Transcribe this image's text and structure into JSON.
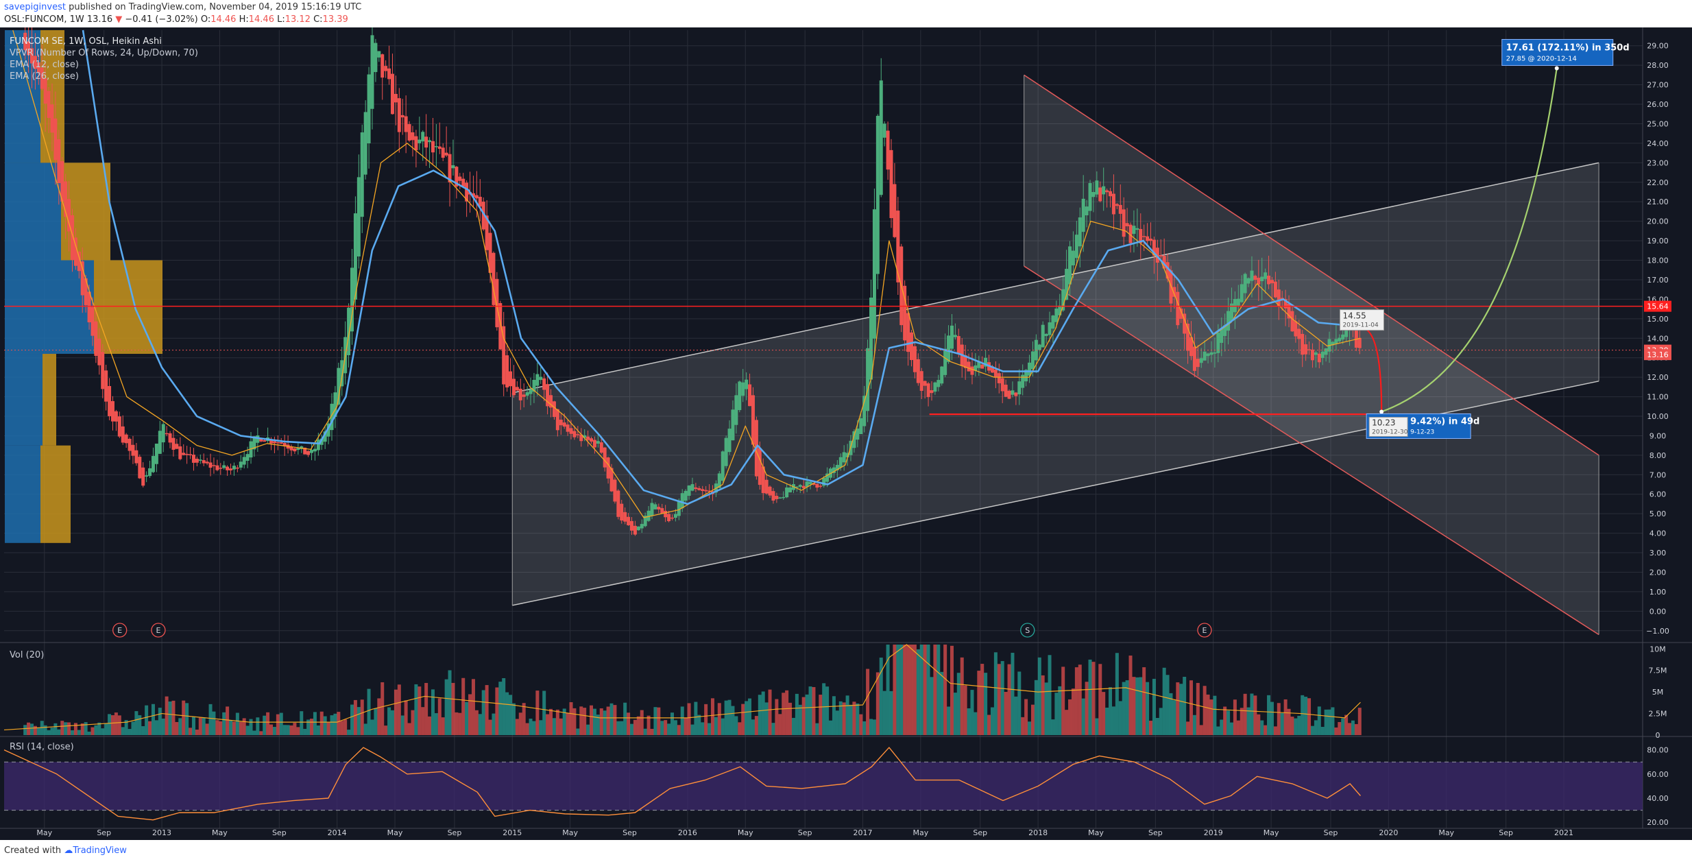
{
  "header": {
    "publisher": "savepiginvest",
    "published_text": "published on TradingView.com, November 04, 2019 15:16:19 UTC",
    "symbol": "OSL:FUNCOM, 1W",
    "last": "13.16",
    "change_arrow": "▼",
    "change": "−0.41 (−3.02%)",
    "ohlc": [
      {
        "label": "O:",
        "value": "14.46"
      },
      {
        "label": "H:",
        "value": "14.46"
      },
      {
        "label": "L:",
        "value": "13.12"
      },
      {
        "label": "C:",
        "value": "13.39"
      }
    ]
  },
  "legend": {
    "title": "FUNCOM SE, 1W, OSL, Heikin Ashi",
    "vpvr": "VPVR (Number Of Rows, 24, Up/Down, 70)",
    "ema12": "EMA (12, close)",
    "ema26": "EMA (26, close)"
  },
  "panes": {
    "volume_label": "Vol (20)",
    "rsi_label": "RSI (14, close)"
  },
  "footer": {
    "created_with": "Created with",
    "brand": "TradingView"
  },
  "colors": {
    "background": "#131722",
    "grid": "#2a2e39",
    "up": "#26a69a",
    "up_candle": "#4caf7d",
    "down": "#ef5350",
    "ema12": "#f5a623",
    "ema26": "#5aaaf0",
    "rsi_line": "#ff8f3a",
    "rsi_band": "#3d2a6e",
    "price_line": "#ff2020",
    "projection_up": "#a5d16f",
    "projection_down": "#ff1a1a",
    "channel_fill": "#ffffff",
    "vpvr_up": "#1e6fae",
    "vpvr_down": "#c9951d",
    "label_blue": "#1565c0"
  },
  "chart_data": {
    "type": "candlestick",
    "y_axis_ticks": [
      "29.00",
      "28.00",
      "27.00",
      "26.00",
      "25.00",
      "24.00",
      "23.00",
      "22.00",
      "21.00",
      "20.00",
      "19.00",
      "18.00",
      "17.00",
      "16.00",
      "15.00",
      "14.00",
      "13.00",
      "12.00",
      "11.00",
      "10.00",
      "9.00",
      "8.00",
      "7.00",
      "6.00",
      "5.00",
      "4.00",
      "3.00",
      "2.00",
      "1.00",
      "0.00",
      "−1.00"
    ],
    "ylim": [
      -1.5,
      29.8
    ],
    "price_badges": [
      {
        "value": 15.64,
        "label": "15.64",
        "color": "#ff2020"
      },
      {
        "value": 13.39,
        "label": "13.39",
        "color": "#ef5350"
      },
      {
        "value": 13.16,
        "label": "13.16",
        "color": "#ef5350"
      }
    ],
    "x_axis_ticks": [
      {
        "label": "May",
        "t": 2012.33
      },
      {
        "label": "Sep",
        "t": 2012.67
      },
      {
        "label": "2013",
        "t": 2013.0
      },
      {
        "label": "May",
        "t": 2013.33
      },
      {
        "label": "Sep",
        "t": 2013.67
      },
      {
        "label": "2014",
        "t": 2014.0
      },
      {
        "label": "May",
        "t": 2014.33
      },
      {
        "label": "Sep",
        "t": 2014.67
      },
      {
        "label": "2015",
        "t": 2015.0
      },
      {
        "label": "May",
        "t": 2015.33
      },
      {
        "label": "Sep",
        "t": 2015.67
      },
      {
        "label": "2016",
        "t": 2016.0
      },
      {
        "label": "May",
        "t": 2016.33
      },
      {
        "label": "Sep",
        "t": 2016.67
      },
      {
        "label": "2017",
        "t": 2017.0
      },
      {
        "label": "May",
        "t": 2017.33
      },
      {
        "label": "Sep",
        "t": 2017.67
      },
      {
        "label": "2018",
        "t": 2018.0
      },
      {
        "label": "May",
        "t": 2018.33
      },
      {
        "label": "Sep",
        "t": 2018.67
      },
      {
        "label": "2019",
        "t": 2019.0
      },
      {
        "label": "May",
        "t": 2019.33
      },
      {
        "label": "Sep",
        "t": 2019.67
      },
      {
        "label": "2020",
        "t": 2020.0
      },
      {
        "label": "May",
        "t": 2020.33
      },
      {
        "label": "Sep",
        "t": 2020.67
      },
      {
        "label": "2021",
        "t": 2021.0
      }
    ],
    "xlim": [
      2012.1,
      2021.45
    ],
    "price_path": [
      [
        2012.15,
        32
      ],
      [
        2012.33,
        26
      ],
      [
        2012.5,
        18
      ],
      [
        2012.6,
        14.5
      ],
      [
        2012.68,
        10.5
      ],
      [
        2012.8,
        8.5
      ],
      [
        2012.9,
        6.5
      ],
      [
        2013.0,
        9.5
      ],
      [
        2013.1,
        8.0
      ],
      [
        2013.25,
        7.5
      ],
      [
        2013.4,
        7.2
      ],
      [
        2013.55,
        9.0
      ],
      [
        2013.7,
        8.6
      ],
      [
        2013.85,
        8.0
      ],
      [
        2013.95,
        9.5
      ],
      [
        2014.05,
        14
      ],
      [
        2014.12,
        22
      ],
      [
        2014.2,
        29
      ],
      [
        2014.28,
        27
      ],
      [
        2014.4,
        24
      ],
      [
        2014.5,
        24
      ],
      [
        2014.6,
        23
      ],
      [
        2014.7,
        22
      ],
      [
        2014.8,
        21
      ],
      [
        2014.88,
        17
      ],
      [
        2014.95,
        12
      ],
      [
        2015.05,
        11
      ],
      [
        2015.15,
        12
      ],
      [
        2015.25,
        9.5
      ],
      [
        2015.35,
        9.0
      ],
      [
        2015.5,
        8.5
      ],
      [
        2015.6,
        5.0
      ],
      [
        2015.7,
        3.9
      ],
      [
        2015.8,
        5.5
      ],
      [
        2015.9,
        4.5
      ],
      [
        2016.0,
        6.5
      ],
      [
        2016.15,
        6.0
      ],
      [
        2016.25,
        10.0
      ],
      [
        2016.33,
        12.5
      ],
      [
        2016.4,
        6.5
      ],
      [
        2016.5,
        5.5
      ],
      [
        2016.6,
        6.5
      ],
      [
        2016.75,
        6.5
      ],
      [
        2016.9,
        8.0
      ],
      [
        2017.0,
        10.0
      ],
      [
        2017.05,
        17.0
      ],
      [
        2017.1,
        28.0
      ],
      [
        2017.15,
        22.0
      ],
      [
        2017.22,
        15.0
      ],
      [
        2017.3,
        12.0
      ],
      [
        2017.4,
        11.0
      ],
      [
        2017.5,
        14.5
      ],
      [
        2017.6,
        12.0
      ],
      [
        2017.7,
        13.0
      ],
      [
        2017.8,
        11.0
      ],
      [
        2017.9,
        11.5
      ],
      [
        2018.0,
        14.0
      ],
      [
        2018.1,
        15.0
      ],
      [
        2018.2,
        19.0
      ],
      [
        2018.3,
        22.0
      ],
      [
        2018.4,
        21.0
      ],
      [
        2018.5,
        19.5
      ],
      [
        2018.6,
        19.0
      ],
      [
        2018.7,
        18.0
      ],
      [
        2018.8,
        15.0
      ],
      [
        2018.9,
        12.5
      ],
      [
        2019.0,
        13.5
      ],
      [
        2019.1,
        15.5
      ],
      [
        2019.2,
        17.5
      ],
      [
        2019.3,
        17.0
      ],
      [
        2019.4,
        15.5
      ],
      [
        2019.5,
        13.5
      ],
      [
        2019.6,
        13.0
      ],
      [
        2019.7,
        14.0
      ],
      [
        2019.78,
        14.5
      ],
      [
        2019.84,
        13.2
      ]
    ],
    "ema12_path": [
      [
        2012.15,
        30
      ],
      [
        2012.4,
        22
      ],
      [
        2012.6,
        16
      ],
      [
        2012.8,
        11
      ],
      [
        2013.0,
        9.8
      ],
      [
        2013.2,
        8.5
      ],
      [
        2013.4,
        8.0
      ],
      [
        2013.6,
        8.6
      ],
      [
        2013.85,
        8.3
      ],
      [
        2014.0,
        10.5
      ],
      [
        2014.1,
        16
      ],
      [
        2014.25,
        23
      ],
      [
        2014.4,
        24
      ],
      [
        2014.6,
        22.5
      ],
      [
        2014.8,
        20.5
      ],
      [
        2014.95,
        14
      ],
      [
        2015.1,
        11.5
      ],
      [
        2015.3,
        10
      ],
      [
        2015.55,
        7.5
      ],
      [
        2015.75,
        4.8
      ],
      [
        2015.95,
        5.2
      ],
      [
        2016.2,
        6.5
      ],
      [
        2016.33,
        9.5
      ],
      [
        2016.45,
        7.0
      ],
      [
        2016.65,
        6.2
      ],
      [
        2016.9,
        7.5
      ],
      [
        2017.05,
        12.0
      ],
      [
        2017.15,
        19.0
      ],
      [
        2017.3,
        14.0
      ],
      [
        2017.5,
        12.8
      ],
      [
        2017.75,
        12.0
      ],
      [
        2017.95,
        12.0
      ],
      [
        2018.1,
        14.5
      ],
      [
        2018.3,
        20.0
      ],
      [
        2018.5,
        19.5
      ],
      [
        2018.7,
        18.0
      ],
      [
        2018.9,
        13.5
      ],
      [
        2019.1,
        14.8
      ],
      [
        2019.25,
        16.8
      ],
      [
        2019.45,
        15.0
      ],
      [
        2019.65,
        13.6
      ],
      [
        2019.84,
        14.0
      ]
    ],
    "ema26_path": [
      [
        2012.55,
        30
      ],
      [
        2012.7,
        21
      ],
      [
        2012.85,
        15.5
      ],
      [
        2013.0,
        12.5
      ],
      [
        2013.2,
        10.0
      ],
      [
        2013.45,
        9.0
      ],
      [
        2013.7,
        8.7
      ],
      [
        2013.9,
        8.6
      ],
      [
        2014.05,
        11
      ],
      [
        2014.2,
        18.5
      ],
      [
        2014.35,
        21.8
      ],
      [
        2014.55,
        22.6
      ],
      [
        2014.75,
        21.6
      ],
      [
        2014.9,
        19.5
      ],
      [
        2015.05,
        14
      ],
      [
        2015.25,
        11.5
      ],
      [
        2015.5,
        9.0
      ],
      [
        2015.75,
        6.2
      ],
      [
        2016.0,
        5.5
      ],
      [
        2016.25,
        6.5
      ],
      [
        2016.4,
        8.5
      ],
      [
        2016.55,
        7.0
      ],
      [
        2016.8,
        6.5
      ],
      [
        2017.0,
        7.5
      ],
      [
        2017.15,
        13.5
      ],
      [
        2017.3,
        13.8
      ],
      [
        2017.55,
        13.2
      ],
      [
        2017.8,
        12.3
      ],
      [
        2018.0,
        12.3
      ],
      [
        2018.2,
        15.5
      ],
      [
        2018.4,
        18.5
      ],
      [
        2018.6,
        19.0
      ],
      [
        2018.8,
        17.0
      ],
      [
        2019.0,
        14.2
      ],
      [
        2019.2,
        15.5
      ],
      [
        2019.4,
        16.0
      ],
      [
        2019.6,
        14.8
      ],
      [
        2019.84,
        14.6
      ]
    ],
    "support_line": {
      "y": 10.1,
      "t_start": 2017.38,
      "t_end": 2020.04
    },
    "resistance_line": {
      "y": 15.64
    },
    "ascending_channel": {
      "lower": [
        [
          2015.0,
          0.3
        ],
        [
          2021.2,
          11.8
        ]
      ],
      "upper": [
        [
          2015.0,
          11.2
        ],
        [
          2021.2,
          23.0
        ]
      ]
    },
    "descending_channel": {
      "upper": [
        [
          2017.92,
          27.5
        ],
        [
          2021.2,
          8.0
        ]
      ],
      "lower": [
        [
          2017.92,
          17.7
        ],
        [
          2021.2,
          -1.2
        ]
      ]
    },
    "annotations": [
      {
        "label": "14.55",
        "date": "2019-11-04",
        "value": 14.55
      },
      {
        "label": "10.23",
        "date": "2019-12-30",
        "value": 10.23
      },
      {
        "label": "9.42%) in 49d",
        "date": "9-12-23"
      },
      {
        "label": "17.61 (172.11%) in 350d",
        "sub": "27.85 @ 2020-12-14",
        "value": 27.85
      }
    ],
    "projection": {
      "down": [
        [
          2019.84,
          14.55
        ],
        [
          2019.96,
          10.23
        ]
      ],
      "up": [
        [
          2019.96,
          10.23
        ],
        [
          2020.5,
          12.0
        ],
        [
          2020.8,
          18.0
        ],
        [
          2020.96,
          27.85
        ]
      ]
    },
    "event_markers": [
      {
        "label": "E",
        "t": 2012.76,
        "color": "#ef5350"
      },
      {
        "label": "E",
        "t": 2012.98,
        "color": "#ef5350"
      },
      {
        "label": "S",
        "t": 2017.94,
        "color": "#26a69a"
      },
      {
        "label": "E",
        "t": 2018.95,
        "color": "#ef5350"
      }
    ],
    "volume": {
      "y_ticks": [
        "10M",
        "7.5M",
        "5M",
        "2.5M",
        "0"
      ],
      "ylim": [
        0,
        10.5
      ],
      "level_path": [
        [
          2012.1,
          0.6
        ],
        [
          2012.8,
          1.5
        ],
        [
          2013.0,
          2.5
        ],
        [
          2013.5,
          1.5
        ],
        [
          2014.0,
          1.5
        ],
        [
          2014.2,
          3.0
        ],
        [
          2014.5,
          4.5
        ],
        [
          2015.0,
          3.5
        ],
        [
          2015.5,
          2.0
        ],
        [
          2016.0,
          2.0
        ],
        [
          2016.5,
          3.0
        ],
        [
          2017.0,
          3.5
        ],
        [
          2017.15,
          9.0
        ],
        [
          2017.25,
          12
        ],
        [
          2017.5,
          6.0
        ],
        [
          2018.0,
          5.0
        ],
        [
          2018.5,
          5.5
        ],
        [
          2019.0,
          3.0
        ],
        [
          2019.5,
          2.5
        ],
        [
          2019.75,
          2.0
        ],
        [
          2019.84,
          3.8
        ]
      ]
    },
    "rsi": {
      "y_ticks": [
        "80.00",
        "60.00",
        "40.00",
        "20.00"
      ],
      "ylim": [
        15,
        90
      ],
      "bands": [
        30,
        70
      ],
      "path": [
        [
          2012.1,
          80
        ],
        [
          2012.4,
          60
        ],
        [
          2012.6,
          40
        ],
        [
          2012.75,
          25
        ],
        [
          2012.95,
          22
        ],
        [
          2013.1,
          28
        ],
        [
          2013.3,
          28
        ],
        [
          2013.55,
          35
        ],
        [
          2013.75,
          38
        ],
        [
          2013.95,
          40
        ],
        [
          2014.05,
          68
        ],
        [
          2014.15,
          82
        ],
        [
          2014.25,
          74
        ],
        [
          2014.4,
          60
        ],
        [
          2014.6,
          62
        ],
        [
          2014.8,
          45
        ],
        [
          2014.9,
          25
        ],
        [
          2015.1,
          30
        ],
        [
          2015.3,
          27
        ],
        [
          2015.55,
          26
        ],
        [
          2015.7,
          28
        ],
        [
          2015.9,
          48
        ],
        [
          2016.1,
          55
        ],
        [
          2016.3,
          66
        ],
        [
          2016.45,
          50
        ],
        [
          2016.65,
          48
        ],
        [
          2016.9,
          52
        ],
        [
          2017.05,
          66
        ],
        [
          2017.15,
          82
        ],
        [
          2017.3,
          55
        ],
        [
          2017.55,
          55
        ],
        [
          2017.8,
          38
        ],
        [
          2018.0,
          50
        ],
        [
          2018.2,
          68
        ],
        [
          2018.35,
          75
        ],
        [
          2018.55,
          70
        ],
        [
          2018.75,
          56
        ],
        [
          2018.95,
          35
        ],
        [
          2019.1,
          42
        ],
        [
          2019.25,
          58
        ],
        [
          2019.45,
          52
        ],
        [
          2019.65,
          40
        ],
        [
          2019.78,
          52
        ],
        [
          2019.84,
          42
        ]
      ]
    },
    "vpvr_rows": [
      {
        "top": 23.0,
        "bottom": 18.0,
        "up_units": 82,
        "down_units": 72
      },
      {
        "top": 18.0,
        "bottom": 13.2,
        "up_units": 130,
        "down_units": 100
      },
      {
        "top": 13.2,
        "bottom": 8.5,
        "up_units": 55,
        "down_units": 20
      },
      {
        "top": 8.5,
        "bottom": 3.5,
        "up_units": 52,
        "down_units": 44
      },
      {
        "top": 29.8,
        "bottom": 23.0,
        "up_units": 52,
        "down_units": 35
      }
    ]
  }
}
